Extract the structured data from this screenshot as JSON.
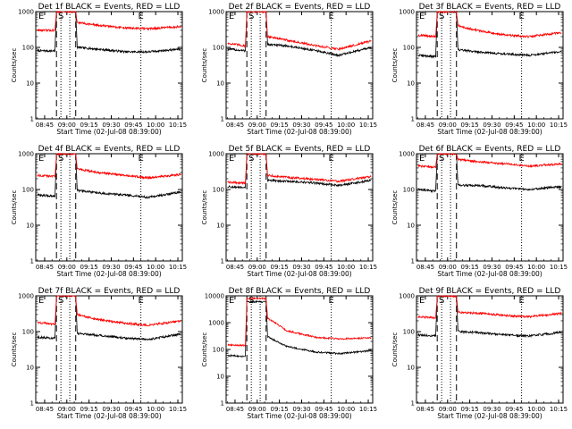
{
  "figure": {
    "ylabel": "Counts/sec",
    "xlabel": "Start Time (02-Jul-08 08:39:00)",
    "time_ticks": [
      "08:45",
      "09:00",
      "09:15",
      "09:30",
      "09:45",
      "10:00",
      "10:15"
    ],
    "y_ticks": [
      "1",
      "10",
      "100",
      "1000"
    ],
    "marker_s": "S",
    "marker_e": "E"
  },
  "chart_data": [
    {
      "type": "line",
      "title": "Det 1f BLACK = Events, RED = LLD",
      "x_range": [
        "08:39",
        "10:18"
      ],
      "ylim": [
        1,
        1000
      ],
      "y_scale": "log",
      "dashed_lines": [
        "08:53",
        "09:06"
      ],
      "dotted_lines": [
        "08:56",
        "09:02",
        "09:50"
      ],
      "series": [
        {
          "name": "Events",
          "color": "#000000",
          "x": [
            "08:40",
            "08:52",
            "08:53",
            "08:55",
            "09:06",
            "09:07",
            "09:20",
            "09:40",
            "09:55",
            "10:17"
          ],
          "y": [
            80,
            80,
            1000,
            1000,
            1000,
            100,
            90,
            75,
            75,
            90
          ]
        },
        {
          "name": "LLD",
          "color": "#ff0000",
          "x": [
            "08:40",
            "08:52",
            "08:53",
            "08:55",
            "09:06",
            "09:07",
            "09:20",
            "09:40",
            "09:55",
            "10:17"
          ],
          "y": [
            300,
            300,
            1000,
            1000,
            1000,
            500,
            420,
            350,
            330,
            380
          ]
        }
      ]
    },
    {
      "type": "line",
      "title": "Det 2f BLACK = Events, RED = LLD",
      "x_range": [
        "08:39",
        "10:18"
      ],
      "ylim": [
        1,
        1000
      ],
      "y_scale": "log",
      "dashed_lines": [
        "08:53",
        "09:06"
      ],
      "dotted_lines": [
        "08:56",
        "09:02",
        "09:50"
      ],
      "series": [
        {
          "name": "Events",
          "color": "#000000",
          "x": [
            "08:40",
            "08:52",
            "08:53",
            "08:55",
            "09:06",
            "09:07",
            "09:20",
            "09:40",
            "09:55",
            "10:17"
          ],
          "y": [
            90,
            80,
            1000,
            1000,
            1000,
            120,
            110,
            80,
            60,
            100
          ]
        },
        {
          "name": "LLD",
          "color": "#ff0000",
          "x": [
            "08:40",
            "08:52",
            "08:53",
            "08:55",
            "09:06",
            "09:07",
            "09:20",
            "09:40",
            "09:55",
            "10:17"
          ],
          "y": [
            130,
            110,
            1000,
            1000,
            1000,
            200,
            160,
            110,
            90,
            150
          ]
        }
      ]
    },
    {
      "type": "line",
      "title": "Det 3f BLACK = Events, RED = LLD",
      "x_range": [
        "08:39",
        "10:18"
      ],
      "ylim": [
        1,
        1000
      ],
      "y_scale": "log",
      "dashed_lines": [
        "08:53",
        "09:06"
      ],
      "dotted_lines": [
        "08:56",
        "09:02",
        "09:50"
      ],
      "series": [
        {
          "name": "Events",
          "color": "#000000",
          "x": [
            "08:40",
            "08:52",
            "08:53",
            "08:55",
            "09:06",
            "09:07",
            "09:20",
            "09:40",
            "09:55",
            "10:17"
          ],
          "y": [
            60,
            55,
            1000,
            1000,
            1000,
            85,
            75,
            65,
            60,
            75
          ]
        },
        {
          "name": "LLD",
          "color": "#ff0000",
          "x": [
            "08:40",
            "08:52",
            "08:53",
            "08:55",
            "09:06",
            "09:07",
            "09:20",
            "09:40",
            "09:55",
            "10:17"
          ],
          "y": [
            220,
            200,
            1000,
            1000,
            1000,
            400,
            300,
            220,
            200,
            260
          ]
        }
      ]
    },
    {
      "type": "line",
      "title": "Det 4f BLACK = Events, RED = LLD",
      "x_range": [
        "08:39",
        "10:18"
      ],
      "ylim": [
        1,
        1000
      ],
      "y_scale": "log",
      "dashed_lines": [
        "08:53",
        "09:06"
      ],
      "dotted_lines": [
        "08:56",
        "09:02",
        "09:50"
      ],
      "series": [
        {
          "name": "Events",
          "color": "#000000",
          "x": [
            "08:40",
            "08:52",
            "08:53",
            "08:55",
            "09:06",
            "09:07",
            "09:20",
            "09:40",
            "09:55",
            "10:17"
          ],
          "y": [
            70,
            65,
            1000,
            1000,
            1000,
            95,
            80,
            70,
            60,
            85
          ]
        },
        {
          "name": "LLD",
          "color": "#ff0000",
          "x": [
            "08:40",
            "08:52",
            "08:53",
            "08:55",
            "09:06",
            "09:07",
            "09:20",
            "09:40",
            "09:55",
            "10:17"
          ],
          "y": [
            250,
            230,
            1000,
            1000,
            1000,
            380,
            300,
            250,
            210,
            260
          ]
        }
      ]
    },
    {
      "type": "line",
      "title": "Det 5f BLACK = Events, RED = LLD",
      "x_range": [
        "08:39",
        "10:18"
      ],
      "ylim": [
        1,
        1000
      ],
      "y_scale": "log",
      "dashed_lines": [
        "08:53",
        "09:06"
      ],
      "dotted_lines": [
        "08:56",
        "09:02",
        "09:50"
      ],
      "series": [
        {
          "name": "Events",
          "color": "#000000",
          "x": [
            "08:40",
            "08:52",
            "08:53",
            "08:55",
            "09:06",
            "09:07",
            "09:20",
            "09:40",
            "09:55",
            "10:17"
          ],
          "y": [
            120,
            110,
            1000,
            1000,
            1000,
            180,
            170,
            150,
            130,
            180
          ]
        },
        {
          "name": "LLD",
          "color": "#ff0000",
          "x": [
            "08:40",
            "08:52",
            "08:53",
            "08:55",
            "09:06",
            "09:07",
            "09:20",
            "09:40",
            "09:55",
            "10:17"
          ],
          "y": [
            160,
            150,
            1000,
            1000,
            1000,
            250,
            220,
            190,
            170,
            230
          ]
        }
      ]
    },
    {
      "type": "line",
      "title": "Det 6f BLACK = Events, RED = LLD",
      "x_range": [
        "08:39",
        "10:18"
      ],
      "ylim": [
        1,
        1000
      ],
      "y_scale": "log",
      "dashed_lines": [
        "08:53",
        "09:06"
      ],
      "dotted_lines": [
        "08:56",
        "09:02",
        "09:50"
      ],
      "series": [
        {
          "name": "Events",
          "color": "#000000",
          "x": [
            "08:40",
            "08:52",
            "08:53",
            "08:55",
            "09:06",
            "09:07",
            "09:20",
            "09:40",
            "09:55",
            "10:17"
          ],
          "y": [
            100,
            90,
            1000,
            1000,
            1000,
            130,
            130,
            110,
            100,
            120
          ]
        },
        {
          "name": "LLD",
          "color": "#ff0000",
          "x": [
            "08:40",
            "08:52",
            "08:53",
            "08:55",
            "09:06",
            "09:07",
            "09:20",
            "09:40",
            "09:55",
            "10:17"
          ],
          "y": [
            450,
            420,
            1000,
            1000,
            1000,
            700,
            600,
            520,
            450,
            520
          ]
        }
      ]
    },
    {
      "type": "line",
      "title": "Det 7f BLACK = Events, RED = LLD",
      "x_range": [
        "08:39",
        "10:18"
      ],
      "ylim": [
        1,
        1000
      ],
      "y_scale": "log",
      "dashed_lines": [
        "08:53",
        "09:06"
      ],
      "dotted_lines": [
        "08:56",
        "09:02",
        "09:50"
      ],
      "series": [
        {
          "name": "Events",
          "color": "#000000",
          "x": [
            "08:40",
            "08:52",
            "08:53",
            "08:55",
            "09:06",
            "09:07",
            "09:20",
            "09:40",
            "09:55",
            "10:17"
          ],
          "y": [
            70,
            65,
            1000,
            1000,
            1000,
            90,
            80,
            65,
            60,
            85
          ]
        },
        {
          "name": "LLD",
          "color": "#ff0000",
          "x": [
            "08:40",
            "08:52",
            "08:53",
            "08:55",
            "09:06",
            "09:07",
            "09:20",
            "09:40",
            "09:55",
            "10:17"
          ],
          "y": [
            180,
            160,
            1000,
            1000,
            1000,
            300,
            220,
            170,
            150,
            200
          ]
        }
      ]
    },
    {
      "type": "line",
      "title": "Det 8f BLACK = Events, RED = LLD",
      "x_range": [
        "08:39",
        "10:18"
      ],
      "ylim": [
        1,
        10000
      ],
      "y_scale": "log",
      "dashed_lines": [
        "08:53",
        "09:06"
      ],
      "dotted_lines": [
        "08:56",
        "09:02",
        "09:50"
      ],
      "series": [
        {
          "name": "Events",
          "color": "#000000",
          "x": [
            "08:40",
            "08:52",
            "08:53",
            "08:55",
            "09:06",
            "09:07",
            "09:20",
            "09:40",
            "09:55",
            "10:17"
          ],
          "y": [
            60,
            55,
            6000,
            6000,
            6000,
            300,
            130,
            80,
            70,
            90
          ]
        },
        {
          "name": "LLD",
          "color": "#ff0000",
          "x": [
            "08:40",
            "08:52",
            "08:53",
            "08:55",
            "09:06",
            "09:07",
            "09:20",
            "09:40",
            "09:55",
            "10:17"
          ],
          "y": [
            150,
            140,
            8000,
            8000,
            8000,
            1500,
            500,
            280,
            250,
            270
          ]
        }
      ]
    },
    {
      "type": "line",
      "title": "Det 9f BLACK = Events, RED = LLD",
      "x_range": [
        "08:39",
        "10:18"
      ],
      "ylim": [
        1,
        1000
      ],
      "y_scale": "log",
      "dashed_lines": [
        "08:53",
        "09:06"
      ],
      "dotted_lines": [
        "08:56",
        "09:02",
        "09:50"
      ],
      "series": [
        {
          "name": "Events",
          "color": "#000000",
          "x": [
            "08:40",
            "08:52",
            "08:53",
            "08:55",
            "09:06",
            "09:07",
            "09:20",
            "09:40",
            "09:55",
            "10:17"
          ],
          "y": [
            80,
            75,
            1000,
            1000,
            1000,
            100,
            95,
            80,
            75,
            95
          ]
        },
        {
          "name": "LLD",
          "color": "#ff0000",
          "x": [
            "08:40",
            "08:52",
            "08:53",
            "08:55",
            "09:06",
            "09:07",
            "09:20",
            "09:40",
            "09:55",
            "10:17"
          ],
          "y": [
            260,
            240,
            1000,
            1000,
            1000,
            350,
            330,
            280,
            260,
            320
          ]
        }
      ]
    }
  ]
}
